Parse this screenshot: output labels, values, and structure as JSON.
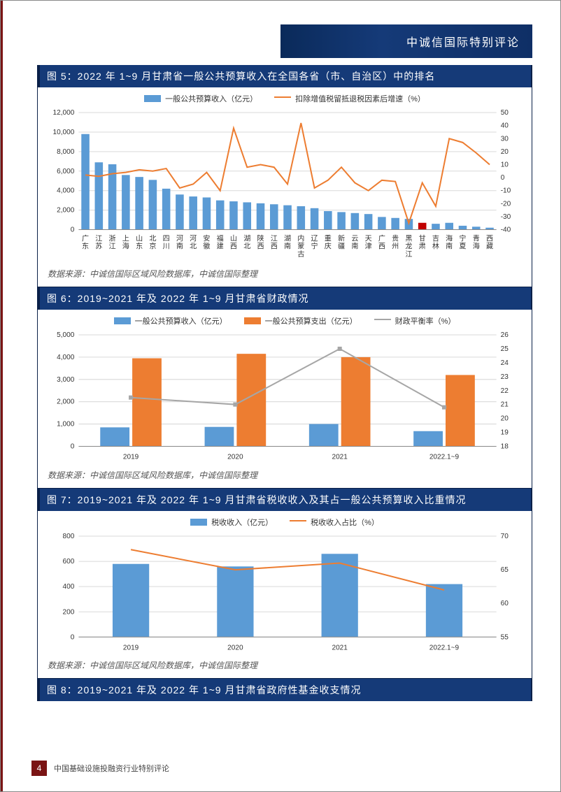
{
  "header": {
    "brand_text": "中诚信国际特别评论"
  },
  "footer": {
    "page_number": "4",
    "text": "中国基础设施投融资行业特别评论"
  },
  "source_text": "数据来源：中诚信国际区域风险数据库，中诚信国际整理",
  "chart5": {
    "title": "图 5：2022 年 1~9 月甘肃省一般公共预算收入在全国各省（市、自治区）中的排名",
    "type": "bar+line",
    "legend_bar": "一般公共预算收入（亿元）",
    "legend_line": "扣除增值税留抵退税因素后增速（%）",
    "bar_color": "#5b9bd5",
    "line_color": "#ed7d31",
    "highlight_color": "#c00000",
    "grid_color": "#d9d9d9",
    "background_color": "#ffffff",
    "y_left": {
      "min": 0,
      "max": 12000,
      "step": 2000
    },
    "y_right": {
      "min": -40,
      "max": 50,
      "step": 10
    },
    "categories": [
      "广东",
      "江苏",
      "浙江",
      "上海",
      "山东",
      "北京",
      "四川",
      "河南",
      "河北",
      "安徽",
      "福建",
      "山西",
      "湖北",
      "陕西",
      "江西",
      "湖南",
      "内蒙古",
      "辽宁",
      "重庆",
      "新疆",
      "云南",
      "天津",
      "广西",
      "贵州",
      "黑龙江",
      "甘肃",
      "吉林",
      "海南",
      "宁夏",
      "青海",
      "西藏"
    ],
    "bars": [
      9800,
      6900,
      6700,
      5600,
      5400,
      5100,
      4200,
      3600,
      3400,
      3300,
      3000,
      2900,
      2800,
      2700,
      2600,
      2500,
      2400,
      2200,
      1900,
      1800,
      1700,
      1600,
      1300,
      1200,
      1100,
      700,
      600,
      700,
      400,
      300,
      200
    ],
    "line": [
      2,
      1,
      3,
      4,
      6,
      5,
      7,
      -8,
      -5,
      4,
      -10,
      38,
      8,
      10,
      8,
      -5,
      42,
      -8,
      -2,
      8,
      -4,
      -10,
      -2,
      -3,
      -35,
      -4,
      -22,
      30,
      27,
      19,
      10
    ],
    "highlight_index": 25,
    "bar_width": 0.6,
    "label_fontsize": 10,
    "title_fontsize": 14
  },
  "chart6": {
    "title": "图 6：2019~2021 年及 2022 年 1~9 月甘肃省财政情况",
    "type": "grouped-bar+line",
    "legend_bar1": "一般公共预算收入（亿元）",
    "legend_bar2": "一般公共预算支出（亿元）",
    "legend_line": "财政平衡率（%）",
    "bar1_color": "#5b9bd5",
    "bar2_color": "#ed7d31",
    "line_color": "#a6a6a6",
    "grid_color": "#d9d9d9",
    "background_color": "#ffffff",
    "y_left": {
      "min": 0,
      "max": 5000,
      "step": 1000
    },
    "y_right": {
      "min": 18,
      "max": 26,
      "step": 1
    },
    "categories": [
      "2019",
      "2020",
      "2021",
      "2022.1~9"
    ],
    "bar1": [
      850,
      870,
      1000,
      680
    ],
    "bar2": [
      3950,
      4150,
      4000,
      3200
    ],
    "line": [
      21.5,
      21.0,
      25.0,
      20.8
    ],
    "bar_width": 0.28,
    "label_fontsize": 10,
    "title_fontsize": 14
  },
  "chart7": {
    "title": "图 7：2019~2021 年及 2022 年 1~9 月甘肃省税收收入及其占一般公共预算收入比重情况",
    "type": "bar+line",
    "legend_bar": "税收收入（亿元）",
    "legend_line": "税收收入占比（%）",
    "bar_color": "#5b9bd5",
    "line_color": "#ed7d31",
    "grid_color": "#d9d9d9",
    "background_color": "#ffffff",
    "y_left": {
      "min": 0,
      "max": 800,
      "step": 200
    },
    "y_right": {
      "min": 55,
      "max": 70,
      "step": 5
    },
    "categories": [
      "2019",
      "2020",
      "2021",
      "2022.1~9"
    ],
    "bars": [
      580,
      560,
      660,
      420
    ],
    "line": [
      68,
      65,
      66,
      62
    ],
    "bar_width": 0.35,
    "label_fontsize": 10,
    "title_fontsize": 14
  },
  "chart8": {
    "title": "图 8：2019~2021 年及 2022 年 1~9 月甘肃省政府性基金收支情况"
  }
}
